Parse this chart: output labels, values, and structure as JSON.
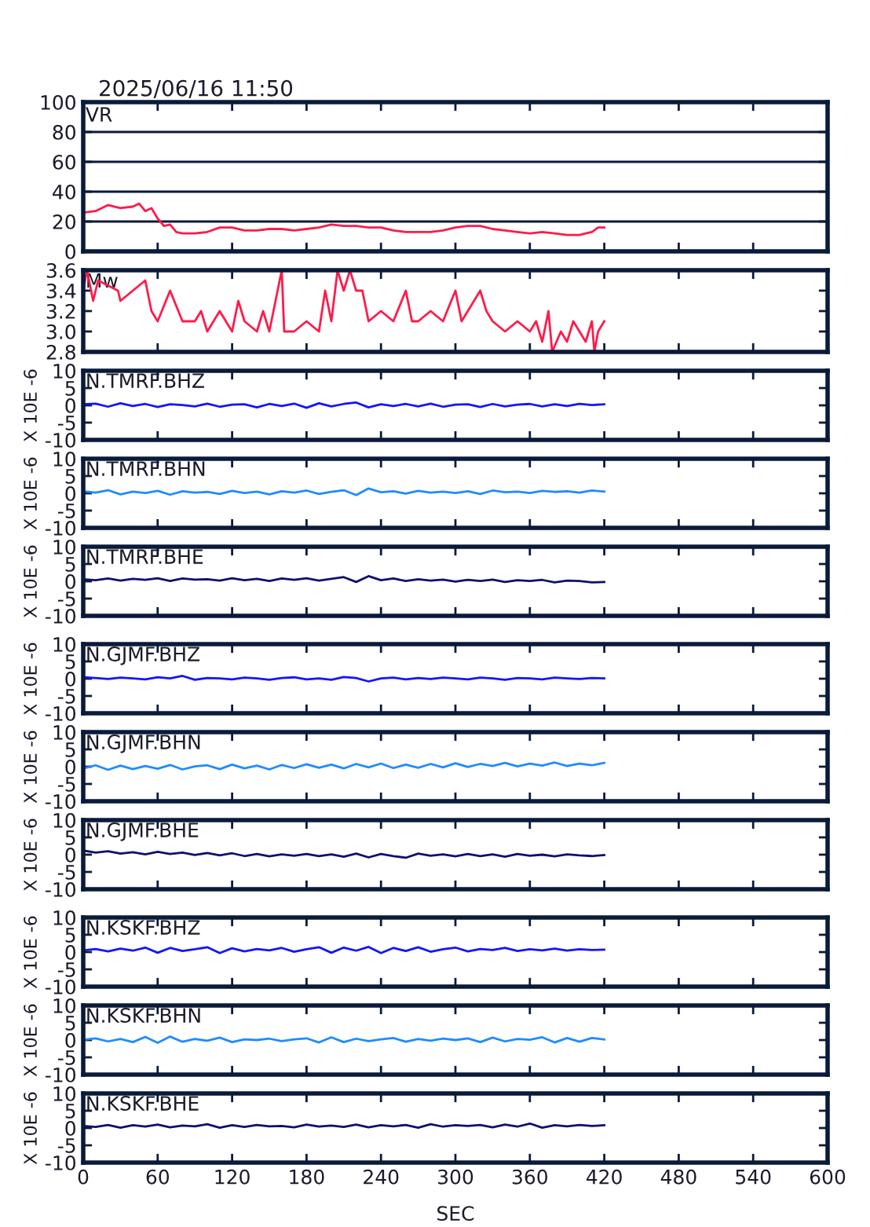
{
  "chart_data": [
    {
      "type": "line",
      "title": "VR",
      "annotations": [
        "2025/06/16 11:50"
      ],
      "xlim": [
        0,
        600
      ],
      "xticks": [
        0,
        60,
        120,
        180,
        240,
        300,
        360,
        420,
        480,
        540,
        600
      ],
      "ylim": [
        0,
        100
      ],
      "yticks": [
        0,
        20,
        40,
        60,
        80,
        100
      ],
      "grid": "y",
      "tick_labels": "y",
      "x": [
        0,
        10,
        20,
        30,
        40,
        45,
        50,
        55,
        60,
        65,
        70,
        75,
        80,
        90,
        100,
        110,
        120,
        130,
        140,
        150,
        160,
        170,
        180,
        190,
        200,
        210,
        220,
        230,
        240,
        250,
        260,
        270,
        280,
        290,
        300,
        310,
        320,
        330,
        340,
        350,
        360,
        370,
        380,
        390,
        400,
        405,
        410,
        415,
        420
      ],
      "series": [
        {
          "color": "#ff1a4a",
          "values": [
            26,
            27,
            31,
            29,
            30,
            32,
            27,
            29,
            22,
            17,
            18,
            13,
            12,
            12,
            13,
            16,
            16,
            14,
            14,
            15,
            15,
            14,
            15,
            16,
            18,
            17,
            17,
            16,
            16,
            14,
            13,
            13,
            13,
            14,
            16,
            17,
            17,
            15,
            14,
            13,
            12,
            13,
            12,
            11,
            11,
            12,
            13,
            16,
            16
          ]
        }
      ]
    },
    {
      "type": "line",
      "title": "Mw",
      "xlim": [
        0,
        600
      ],
      "xticks": [
        0,
        60,
        120,
        180,
        240,
        300,
        360,
        420,
        480,
        540,
        600
      ],
      "ylim": [
        2.8,
        3.6
      ],
      "yticks": [
        {
          "value": 2.8,
          "label": "2.8"
        },
        {
          "value": 3.0,
          "label": "3.0"
        },
        {
          "value": 3.2,
          "label": "3.2"
        },
        {
          "value": 3.4,
          "label": "3.4"
        },
        {
          "value": 3.6,
          "label": "3.6"
        }
      ],
      "tick_labels": "y",
      "x": [
        0,
        3,
        8,
        12,
        28,
        30,
        40,
        50,
        55,
        60,
        70,
        80,
        90,
        95,
        100,
        110,
        120,
        125,
        130,
        140,
        145,
        150,
        160,
        162,
        170,
        180,
        190,
        195,
        200,
        205,
        210,
        215,
        220,
        225,
        230,
        240,
        250,
        260,
        265,
        270,
        280,
        290,
        300,
        305,
        320,
        325,
        330,
        340,
        350,
        360,
        365,
        370,
        375,
        378,
        385,
        390,
        395,
        405,
        410,
        412,
        415,
        420
      ],
      "series": [
        {
          "color": "#ff1a4a",
          "values": [
            3.4,
            3.6,
            3.3,
            3.5,
            3.4,
            3.3,
            3.4,
            3.5,
            3.2,
            3.1,
            3.4,
            3.1,
            3.1,
            3.2,
            3.0,
            3.2,
            3.0,
            3.3,
            3.1,
            3.0,
            3.2,
            3.0,
            3.6,
            3.0,
            3.0,
            3.1,
            3.0,
            3.4,
            3.1,
            3.6,
            3.4,
            3.6,
            3.4,
            3.4,
            3.1,
            3.2,
            3.1,
            3.4,
            3.1,
            3.1,
            3.2,
            3.1,
            3.4,
            3.1,
            3.4,
            3.2,
            3.1,
            3.0,
            3.1,
            3.0,
            3.1,
            2.9,
            3.2,
            2.8,
            3.0,
            2.9,
            3.1,
            2.9,
            3.1,
            2.8,
            3.0,
            3.1
          ]
        }
      ]
    },
    {
      "type": "line",
      "title": "N.TMRF.BHZ",
      "ylabel": "X 10E -6",
      "xlim": [
        0,
        600
      ],
      "xticks": [
        0,
        60,
        120,
        180,
        240,
        300,
        360,
        420,
        480,
        540,
        600
      ],
      "ylim": [
        -10,
        10
      ],
      "yticks": [
        -10,
        -5,
        0,
        5,
        10
      ],
      "tick_labels": "y",
      "x": [
        0,
        10,
        20,
        30,
        40,
        50,
        60,
        70,
        80,
        90,
        100,
        110,
        120,
        130,
        140,
        150,
        160,
        170,
        180,
        190,
        200,
        210,
        220,
        230,
        240,
        250,
        260,
        270,
        280,
        290,
        300,
        310,
        320,
        330,
        340,
        350,
        360,
        370,
        380,
        390,
        400,
        410,
        420
      ],
      "series": [
        {
          "color": "#1414ff",
          "values": [
            0.3,
            0.5,
            -0.4,
            0.6,
            -0.2,
            0.4,
            -0.5,
            0.3,
            0.1,
            -0.3,
            0.5,
            -0.4,
            0.2,
            0.3,
            -0.6,
            0.4,
            -0.2,
            0.5,
            -0.7,
            0.6,
            -0.3,
            0.4,
            0.8,
            -0.6,
            0.3,
            -0.2,
            0.4,
            -0.3,
            0.5,
            -0.4,
            0.2,
            0.3,
            -0.5,
            0.4,
            -0.3,
            0.2,
            0.4,
            -0.3,
            0.3,
            -0.2,
            0.4,
            0.1,
            0.3
          ]
        }
      ]
    },
    {
      "type": "line",
      "title": "N.TMRF.BHN",
      "ylabel": "X 10E -6",
      "xlim": [
        0,
        600
      ],
      "xticks": [
        0,
        60,
        120,
        180,
        240,
        300,
        360,
        420,
        480,
        540,
        600
      ],
      "ylim": [
        -10,
        10
      ],
      "yticks": [
        -10,
        -5,
        0,
        5,
        10
      ],
      "tick_labels": "y",
      "x": [
        0,
        10,
        20,
        30,
        40,
        50,
        60,
        70,
        80,
        90,
        100,
        110,
        120,
        130,
        140,
        150,
        160,
        170,
        180,
        190,
        200,
        210,
        220,
        230,
        240,
        250,
        260,
        270,
        280,
        290,
        300,
        310,
        320,
        330,
        340,
        350,
        360,
        370,
        380,
        390,
        400,
        410,
        420
      ],
      "series": [
        {
          "color": "#1e8cff",
          "values": [
            0.6,
            0.2,
            0.9,
            -0.3,
            0.5,
            0.1,
            0.7,
            -0.4,
            0.6,
            0.2,
            0.4,
            -0.2,
            0.7,
            0.1,
            0.5,
            -0.3,
            0.6,
            0.2,
            0.8,
            -0.2,
            0.4,
            0.9,
            -0.5,
            1.4,
            0.3,
            0.6,
            -0.1,
            0.7,
            0.2,
            0.5,
            0.1,
            0.6,
            -0.2,
            0.8,
            0.3,
            0.5,
            0.1,
            0.7,
            0.4,
            0.6,
            0.2,
            0.8,
            0.5
          ]
        }
      ]
    },
    {
      "type": "line",
      "title": "N.TMRF.BHE",
      "ylabel": "X 10E -6",
      "xlim": [
        0,
        600
      ],
      "xticks": [
        0,
        60,
        120,
        180,
        240,
        300,
        360,
        420,
        480,
        540,
        600
      ],
      "ylim": [
        -10,
        10
      ],
      "yticks": [
        -10,
        -5,
        0,
        5,
        10
      ],
      "tick_labels": "y",
      "x": [
        0,
        10,
        20,
        30,
        40,
        50,
        60,
        70,
        80,
        90,
        100,
        110,
        120,
        130,
        140,
        150,
        160,
        170,
        180,
        190,
        200,
        210,
        220,
        230,
        240,
        250,
        260,
        270,
        280,
        290,
        300,
        310,
        320,
        330,
        340,
        350,
        360,
        370,
        380,
        390,
        400,
        410,
        420
      ],
      "series": [
        {
          "color": "#10106e",
          "values": [
            0.6,
            0.3,
            0.8,
            0.2,
            0.7,
            0.4,
            0.9,
            0.1,
            0.8,
            0.5,
            0.6,
            0.2,
            0.9,
            0.3,
            0.7,
            0.1,
            0.8,
            0.4,
            0.9,
            0.2,
            0.7,
            1.2,
            -0.2,
            1.5,
            0.3,
            0.8,
            0.1,
            0.6,
            0.2,
            0.5,
            -0.1,
            0.4,
            0.1,
            0.5,
            -0.2,
            0.3,
            0.1,
            0.4,
            -0.3,
            0.2,
            0.1,
            -0.3,
            -0.2
          ]
        }
      ]
    },
    {
      "type": "line",
      "title": "N.GJMF.BHZ",
      "ylabel": "X 10E -6",
      "xlim": [
        0,
        600
      ],
      "xticks": [
        0,
        60,
        120,
        180,
        240,
        300,
        360,
        420,
        480,
        540,
        600
      ],
      "ylim": [
        -10,
        10
      ],
      "yticks": [
        -10,
        -5,
        0,
        5,
        10
      ],
      "tick_labels": "y",
      "x": [
        0,
        10,
        20,
        30,
        40,
        50,
        60,
        70,
        80,
        90,
        100,
        110,
        120,
        130,
        140,
        150,
        160,
        170,
        180,
        190,
        200,
        210,
        220,
        230,
        240,
        250,
        260,
        270,
        280,
        290,
        300,
        310,
        320,
        330,
        340,
        350,
        360,
        370,
        380,
        390,
        400,
        410,
        420
      ],
      "series": [
        {
          "color": "#1414ff",
          "values": [
            0.4,
            0.2,
            -0.1,
            0.3,
            0.1,
            -0.2,
            0.4,
            0.1,
            0.8,
            -0.3,
            0.2,
            0.1,
            -0.2,
            0.3,
            0.1,
            -0.3,
            0.2,
            0.4,
            -0.2,
            0.1,
            -0.3,
            0.5,
            0.2,
            -0.8,
            0.1,
            0.3,
            -0.2,
            0.2,
            -0.1,
            0.3,
            0.1,
            -0.2,
            0.3,
            0.1,
            -0.3,
            0.2,
            0.1,
            -0.2,
            0.3,
            0.1,
            -0.1,
            0.2,
            0.1
          ]
        }
      ]
    },
    {
      "type": "line",
      "title": "N.GJMF.BHN",
      "ylabel": "X 10E -6",
      "xlim": [
        0,
        600
      ],
      "xticks": [
        0,
        60,
        120,
        180,
        240,
        300,
        360,
        420,
        480,
        540,
        600
      ],
      "ylim": [
        -10,
        10
      ],
      "yticks": [
        -10,
        -5,
        0,
        5,
        10
      ],
      "tick_labels": "y",
      "x": [
        0,
        10,
        20,
        30,
        40,
        50,
        60,
        70,
        80,
        90,
        100,
        110,
        120,
        130,
        140,
        150,
        160,
        170,
        180,
        190,
        200,
        210,
        220,
        230,
        240,
        250,
        260,
        270,
        280,
        290,
        300,
        310,
        320,
        330,
        340,
        350,
        360,
        370,
        380,
        390,
        400,
        410,
        420
      ],
      "series": [
        {
          "color": "#1e8cff",
          "values": [
            -0.5,
            0.4,
            -0.9,
            0.3,
            -0.7,
            0.2,
            -0.6,
            0.5,
            -0.8,
            0.1,
            0.4,
            -0.7,
            0.6,
            -0.5,
            0.3,
            -0.8,
            0.5,
            -0.4,
            0.7,
            -0.3,
            0.6,
            -0.5,
            0.8,
            -0.2,
            0.9,
            -0.4,
            0.6,
            -0.3,
            0.8,
            -0.2,
            1.0,
            -0.1,
            0.8,
            0.2,
            1.1,
            0.1,
            0.9,
            0.3,
            1.2,
            0.2,
            0.9,
            0.4,
            1.1
          ]
        }
      ]
    },
    {
      "type": "line",
      "title": "N.GJMF.BHE",
      "ylabel": "X 10E -6",
      "xlim": [
        0,
        600
      ],
      "xticks": [
        0,
        60,
        120,
        180,
        240,
        300,
        360,
        420,
        480,
        540,
        600
      ],
      "ylim": [
        -10,
        10
      ],
      "yticks": [
        -10,
        -5,
        0,
        5,
        10
      ],
      "tick_labels": "y",
      "x": [
        0,
        10,
        20,
        30,
        40,
        50,
        60,
        70,
        80,
        90,
        100,
        110,
        120,
        130,
        140,
        150,
        160,
        170,
        180,
        190,
        200,
        210,
        220,
        230,
        240,
        250,
        260,
        270,
        280,
        290,
        300,
        310,
        320,
        330,
        340,
        350,
        360,
        370,
        380,
        390,
        400,
        410,
        420
      ],
      "series": [
        {
          "color": "#10106e",
          "values": [
            1.2,
            0.6,
            1.0,
            0.3,
            0.7,
            0.1,
            0.8,
            0.2,
            0.6,
            -0.1,
            0.5,
            -0.2,
            0.4,
            -0.4,
            0.2,
            -0.5,
            0.1,
            -0.3,
            0.2,
            -0.4,
            0.1,
            -0.6,
            0.3,
            -0.8,
            0.2,
            -0.4,
            -0.9,
            0.3,
            -0.3,
            0.1,
            -0.5,
            0.2,
            -0.4,
            0.1,
            -0.6,
            0.2,
            -0.3,
            0.0,
            -0.5,
            0.1,
            -0.2,
            -0.4,
            -0.1
          ]
        }
      ]
    },
    {
      "type": "line",
      "title": "N.KSKF.BHZ",
      "ylabel": "X 10E -6",
      "xlim": [
        0,
        600
      ],
      "xticks": [
        0,
        60,
        120,
        180,
        240,
        300,
        360,
        420,
        480,
        540,
        600
      ],
      "ylim": [
        -10,
        10
      ],
      "yticks": [
        -10,
        -5,
        0,
        5,
        10
      ],
      "tick_labels": "y",
      "x": [
        0,
        10,
        20,
        30,
        40,
        50,
        60,
        70,
        80,
        90,
        100,
        110,
        120,
        130,
        140,
        150,
        160,
        170,
        180,
        190,
        200,
        210,
        220,
        230,
        240,
        250,
        260,
        270,
        280,
        290,
        300,
        310,
        320,
        330,
        340,
        350,
        360,
        370,
        380,
        390,
        400,
        410,
        420
      ],
      "series": [
        {
          "color": "#1414ff",
          "values": [
            0.5,
            0.9,
            0.2,
            1.0,
            0.4,
            1.3,
            -0.2,
            1.2,
            0.3,
            0.8,
            1.4,
            -0.3,
            1.1,
            0.2,
            0.9,
            0.5,
            1.2,
            0.1,
            0.8,
            1.4,
            -0.2,
            1.3,
            0.4,
            1.5,
            -0.3,
            1.2,
            0.3,
            1.4,
            0.1,
            0.8,
            1.3,
            0.2,
            0.9,
            0.6,
            1.2,
            0.3,
            0.8,
            0.5,
            1.0,
            0.4,
            0.8,
            0.6,
            0.7
          ]
        }
      ]
    },
    {
      "type": "line",
      "title": "N.KSKF.BHN",
      "ylabel": "X 10E -6",
      "xlim": [
        0,
        600
      ],
      "xticks": [
        0,
        60,
        120,
        180,
        240,
        300,
        360,
        420,
        480,
        540,
        600
      ],
      "ylim": [
        -10,
        10
      ],
      "yticks": [
        -10,
        -5,
        0,
        5,
        10
      ],
      "tick_labels": "y",
      "x": [
        0,
        10,
        20,
        30,
        40,
        50,
        60,
        70,
        80,
        90,
        100,
        110,
        120,
        130,
        140,
        150,
        160,
        170,
        180,
        190,
        200,
        210,
        220,
        230,
        240,
        250,
        260,
        270,
        280,
        290,
        300,
        310,
        320,
        330,
        340,
        350,
        360,
        370,
        380,
        390,
        400,
        410,
        420
      ],
      "series": [
        {
          "color": "#1e8cff",
          "values": [
            0.1,
            0.5,
            -0.4,
            0.3,
            -0.6,
            0.9,
            -0.8,
            1.0,
            -0.5,
            0.3,
            -0.2,
            0.7,
            -0.6,
            0.2,
            0.0,
            0.4,
            -0.3,
            0.2,
            0.5,
            -0.7,
            0.8,
            -0.6,
            0.4,
            -0.3,
            0.2,
            0.6,
            -0.5,
            0.3,
            -0.2,
            0.4,
            0.0,
            0.5,
            -0.6,
            0.7,
            -0.4,
            0.3,
            0.1,
            0.8,
            -0.7,
            0.6,
            -0.5,
            0.6,
            0.2
          ]
        }
      ]
    },
    {
      "type": "line",
      "title": "N.KSKF.BHE",
      "ylabel": "X 10E -6",
      "xlabel": "SEC",
      "xlim": [
        0,
        600
      ],
      "xticks": [
        0,
        60,
        120,
        180,
        240,
        300,
        360,
        420,
        480,
        540,
        600
      ],
      "ylim": [
        -10,
        10
      ],
      "yticks": [
        -10,
        -5,
        0,
        5,
        10
      ],
      "x": [
        0,
        10,
        20,
        30,
        40,
        50,
        60,
        70,
        80,
        90,
        100,
        110,
        120,
        130,
        140,
        150,
        160,
        170,
        180,
        190,
        200,
        210,
        220,
        230,
        240,
        250,
        260,
        270,
        280,
        290,
        300,
        310,
        320,
        330,
        340,
        350,
        360,
        370,
        380,
        390,
        400,
        410,
        420
      ],
      "series": [
        {
          "color": "#10106e",
          "values": [
            0.6,
            0.3,
            0.9,
            0.1,
            0.8,
            0.4,
            1.0,
            0.2,
            0.7,
            0.5,
            1.1,
            0.1,
            0.8,
            0.3,
            0.9,
            0.5,
            0.6,
            0.2,
            1.0,
            0.4,
            0.7,
            0.3,
            1.0,
            0.2,
            0.8,
            0.5,
            0.9,
            0.1,
            1.1,
            0.4,
            0.8,
            0.6,
            0.9,
            0.2,
            1.0,
            0.4,
            1.3,
            0.1,
            0.8,
            0.5,
            0.9,
            0.6,
            0.8
          ]
        }
      ]
    }
  ]
}
